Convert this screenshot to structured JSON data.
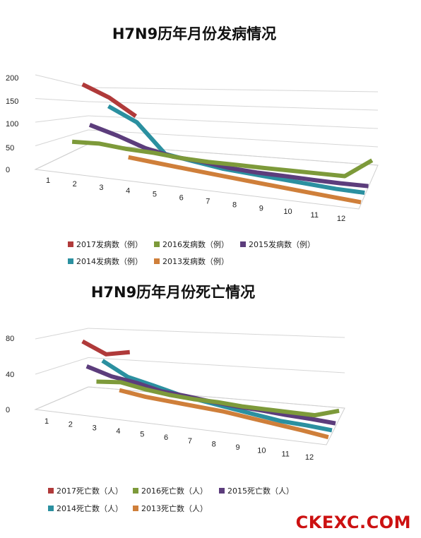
{
  "watermark": "CKEXC.COM",
  "chart_data": [
    {
      "type": "line",
      "title": "H7N9历年月份发病情况",
      "categories": [
        "1",
        "2",
        "3",
        "4",
        "5",
        "6",
        "7",
        "8",
        "9",
        "10",
        "11",
        "12"
      ],
      "y_ticks": [
        "0",
        "50",
        "100",
        "150",
        "200"
      ],
      "ylim": [
        0,
        200
      ],
      "grid": true,
      "legend_position": "bottom",
      "series": [
        {
          "name": "2017发病数（例）",
          "color": "#b03a3a",
          "values": [
            192,
            160,
            110,
            null,
            null,
            null,
            null,
            null,
            null,
            null,
            null,
            null
          ]
        },
        {
          "name": "2016发病数（例）",
          "color": "#7d9a3a",
          "values": [
            28,
            30,
            22,
            18,
            10,
            6,
            5,
            3,
            2,
            1,
            0,
            60
          ]
        },
        {
          "name": "2015发病数（例）",
          "color": "#5c3d7c",
          "values": [
            null,
            90,
            70,
            45,
            30,
            25,
            15,
            10,
            8,
            5,
            3,
            3
          ]
        },
        {
          "name": "2014发病数（例）",
          "color": "#2b90a0",
          "values": [
            null,
            null,
            150,
            120,
            50,
            40,
            30,
            25,
            20,
            15,
            10,
            8
          ]
        },
        {
          "name": "2013发病数（例）",
          "color": "#cf7f3a",
          "values": [
            null,
            null,
            null,
            45,
            40,
            35,
            30,
            25,
            20,
            15,
            10,
            5
          ]
        }
      ]
    },
    {
      "type": "line",
      "title": "H7N9历年月份死亡情况",
      "categories": [
        "1",
        "2",
        "3",
        "4",
        "5",
        "6",
        "7",
        "8",
        "9",
        "10",
        "11",
        "12"
      ],
      "y_ticks": [
        "0",
        "40",
        "80"
      ],
      "ylim": [
        0,
        80
      ],
      "grid": true,
      "legend_position": "bottom",
      "series": [
        {
          "name": "2017死亡数（人）",
          "color": "#b03a3a",
          "values": [
            79,
            62,
            70,
            null,
            null,
            null,
            null,
            null,
            null,
            null,
            null,
            null
          ]
        },
        {
          "name": "2016死亡数（人）",
          "color": "#7d9a3a",
          "values": [
            null,
            22,
            25,
            18,
            13,
            10,
            9,
            6,
            5,
            4,
            3,
            15
          ]
        },
        {
          "name": "2015死亡数（人）",
          "color": "#5c3d7c",
          "values": [
            null,
            48,
            38,
            33,
            25,
            22,
            18,
            15,
            13,
            10,
            8,
            5
          ]
        },
        {
          "name": "2014死亡数（人）",
          "color": "#2b90a0",
          "values": [
            null,
            null,
            62,
            45,
            38,
            30,
            25,
            20,
            15,
            10,
            8,
            5
          ]
        },
        {
          "name": "2013死亡数（人）",
          "color": "#cf7f3a",
          "values": [
            null,
            null,
            null,
            32,
            28,
            26,
            24,
            22,
            18,
            14,
            10,
            5
          ]
        }
      ]
    }
  ]
}
